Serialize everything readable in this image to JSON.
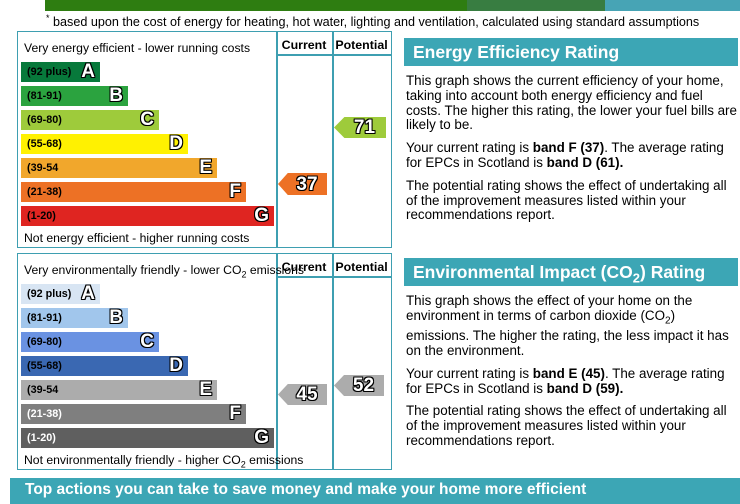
{
  "page": {
    "top_bar": {
      "segment1_color": "#2E7D11",
      "segment2_color": "#387D41",
      "segment3_color": "#47A4B5"
    },
    "footnote_marker": "*",
    "footnote_text": " based upon the cost of energy for heating, hot water, lighting and ventilation, calculated using standard assumptions",
    "bottom_banner": "Top actions you can take to save money and make your home more efficient"
  },
  "colors": {
    "teal_header": "#3CA6B5",
    "chart_border": "#3E9FB1"
  },
  "energy_chart": {
    "top_label": "Very energy efficient - lower running costs",
    "bottom_label": "Not energy efficient - higher running costs",
    "col_current": "Current",
    "col_potential": "Potential",
    "bands": [
      {
        "range": "(92 plus)",
        "letter": "A",
        "color": "#07793B",
        "label_color": "#000000"
      },
      {
        "range": "(81-91)",
        "letter": "B",
        "color": "#2BA33F",
        "label_color": "#000000"
      },
      {
        "range": "(69-80)",
        "letter": "C",
        "color": "#9ECB3B",
        "label_color": "#000000"
      },
      {
        "range": "(55-68)",
        "letter": "D",
        "color": "#FFF101",
        "label_color": "#000000"
      },
      {
        "range": "(39-54",
        "letter": "E",
        "color": "#F1A72C",
        "label_color": "#000000"
      },
      {
        "range": "(21-38)",
        "letter": "F",
        "color": "#ED7125",
        "label_color": "#000000"
      },
      {
        "range": "(1-20)",
        "letter": "G",
        "color": "#DF2521",
        "label_color": "#000000"
      }
    ],
    "current": {
      "value": "37",
      "color": "#ED7125"
    },
    "potential": {
      "value": "71",
      "color": "#9ECB3B"
    }
  },
  "co2_chart": {
    "top_label": {
      "pre": "Very environmentally friendly - lower CO",
      "sub": "2",
      "post": " emissions"
    },
    "bottom_label": {
      "pre": "Not environmentally friendly - higher CO",
      "sub": "2",
      "post": " emissions"
    },
    "col_current": "Current",
    "col_potential": "Potential",
    "bands": [
      {
        "range": "(92 plus)",
        "letter": "A",
        "color": "#D8E5F3",
        "label_color": "#000000"
      },
      {
        "range": "(81-91)",
        "letter": "B",
        "color": "#A1C6EC",
        "label_color": "#000000"
      },
      {
        "range": "(69-80)",
        "letter": "C",
        "color": "#6A92E2",
        "label_color": "#000000"
      },
      {
        "range": "(55-68)",
        "letter": "D",
        "color": "#3A68B2",
        "label_color": "#000000"
      },
      {
        "range": "(39-54",
        "letter": "E",
        "color": "#ACACAC",
        "label_color": "#000000"
      },
      {
        "range": "(21-38)",
        "letter": "F",
        "color": "#7F7F7F",
        "label_color": "#FFFFFF"
      },
      {
        "range": "(1-20)",
        "letter": "G",
        "color": "#5F5F5F",
        "label_color": "#FFFFFF"
      }
    ],
    "current": {
      "value": "45",
      "color": "#ACACAC"
    },
    "potential": {
      "value": "52",
      "color": "#ACACAC"
    }
  },
  "panels": {
    "energy": {
      "title": "Energy Efficiency Rating",
      "p1": "This graph shows the current efficiency of your home, taking into account both energy efficiency and fuel costs. The higher this rating, the lower your fuel bills are likely to be.",
      "p2": {
        "t1": "Your current rating is ",
        "b1": "band F (37)",
        "t2": ". The average rating for EPCs in Scotland is ",
        "b2": "band D (61)."
      },
      "p3": "The potential rating shows the effect of undertaking all of the improvement measures listed within your recommendations report."
    },
    "co2": {
      "title": {
        "pre": "Environmental Impact (CO",
        "sub": "2",
        "post": ") Rating"
      },
      "p1": {
        "t1": "This graph shows the effect of your home on the environment in terms of carbon dioxide (CO",
        "sub": "2",
        "t2": ") emissions. The higher the rating, the less impact it has on the environment."
      },
      "p2": {
        "t1": "Your current rating is ",
        "b1": "band E (45)",
        "t2": ". The average rating for EPCs in Scotland is ",
        "b2": "band D (59)."
      },
      "p3": "The potential rating shows the effect of undertaking all of the improvement measures listed within your recommendations report."
    }
  },
  "chart_data": [
    {
      "type": "bar",
      "variant": "epc-rating-bands",
      "title": "Energy Efficiency Rating",
      "bands": [
        {
          "band": "A",
          "range": "92 plus"
        },
        {
          "band": "B",
          "range": "81-91"
        },
        {
          "band": "C",
          "range": "69-80"
        },
        {
          "band": "D",
          "range": "55-68"
        },
        {
          "band": "E",
          "range": "39-54"
        },
        {
          "band": "F",
          "range": "21-38"
        },
        {
          "band": "G",
          "range": "1-20"
        }
      ],
      "current_rating": 37,
      "current_band": "F",
      "potential_rating": 71,
      "potential_band": "C",
      "scotland_average_rating": 61,
      "scotland_average_band": "D"
    },
    {
      "type": "bar",
      "variant": "epc-rating-bands",
      "title": "Environmental Impact (CO2) Rating",
      "bands": [
        {
          "band": "A",
          "range": "92 plus"
        },
        {
          "band": "B",
          "range": "81-91"
        },
        {
          "band": "C",
          "range": "69-80"
        },
        {
          "band": "D",
          "range": "55-68"
        },
        {
          "band": "E",
          "range": "39-54"
        },
        {
          "band": "F",
          "range": "21-38"
        },
        {
          "band": "G",
          "range": "1-20"
        }
      ],
      "current_rating": 45,
      "current_band": "E",
      "potential_rating": 52,
      "potential_band": "E",
      "scotland_average_rating": 59,
      "scotland_average_band": "D"
    }
  ]
}
